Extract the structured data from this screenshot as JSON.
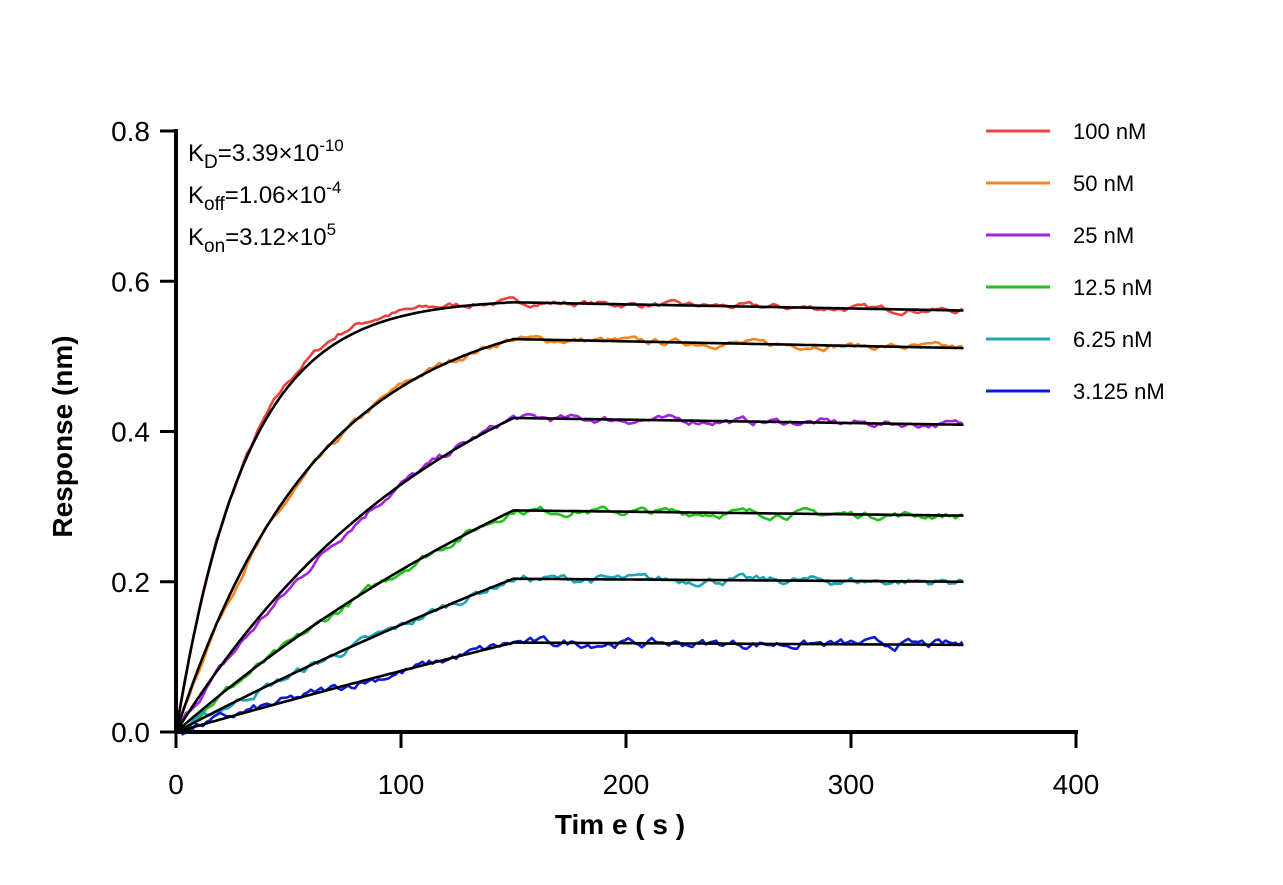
{
  "chart_data": {
    "type": "line",
    "xlabel": "Tim e ( s )",
    "ylabel": "Response (nm)",
    "xlim": [
      0,
      400
    ],
    "ylim": [
      0,
      0.8
    ],
    "x_ticks": [
      "0",
      "100",
      "200",
      "300",
      "400"
    ],
    "y_ticks": [
      "0.0",
      "0.2",
      "0.4",
      "0.6",
      "0.8"
    ],
    "grid": false,
    "legend_position": "top-right",
    "association_end": 150,
    "x_end": 350,
    "annotations": {
      "kd": {
        "sym": "K",
        "sub": "D",
        "val": "=3.39×10",
        "exp": "-10"
      },
      "koff": {
        "sym": "K",
        "sub": "off",
        "val": "=1.06×10",
        "exp": "-4"
      },
      "kon": {
        "sym": "K",
        "sub": "on",
        "val": "=3.12×10",
        "exp": "5"
      }
    },
    "fit_color": "#000000",
    "series": [
      {
        "name": "100 nM",
        "color": "#e8433f",
        "plateau": 0.572,
        "curvature": 4.8,
        "end_value": 0.561,
        "offset": [
          0.05,
          -0.12,
          0.6,
          1.0,
          0.6,
          0.2,
          0.0
        ]
      },
      {
        "name": "50 nM",
        "color": "#f5841f",
        "plateau": 0.523,
        "curvature": 2.4,
        "end_value": 0.511,
        "offset": [
          0.05,
          -0.3,
          -0.7,
          -0.4,
          0.2,
          0.0,
          0.0
        ]
      },
      {
        "name": "25 nM",
        "color": "#a622e0",
        "plateau": 0.418,
        "curvature": 1.2,
        "end_value": 0.409,
        "offset": [
          0.05,
          -0.5,
          -0.9,
          -0.4,
          0.0,
          0.0,
          0.0
        ]
      },
      {
        "name": "12.5 nM",
        "color": "#23c11c",
        "plateau": 0.295,
        "curvature": 0.6,
        "end_value": 0.288,
        "offset": [
          0.05,
          -0.15,
          -0.3,
          -0.3,
          0.0,
          0.0,
          0.0
        ]
      },
      {
        "name": "6.25 nM",
        "color": "#1ea6b8",
        "plateau": 0.204,
        "curvature": 0.3,
        "end_value": 0.2,
        "offset": [
          0.05,
          -0.05,
          -0.15,
          -0.1,
          -0.2,
          0.0,
          0.0
        ]
      },
      {
        "name": "3.125 nM",
        "color": "#0d1bd4",
        "plateau": 0.119,
        "curvature": 0.15,
        "end_value": 0.116,
        "offset": [
          0.05,
          0.05,
          0.0,
          0.0,
          -0.2,
          0.0,
          0.0
        ]
      }
    ]
  }
}
